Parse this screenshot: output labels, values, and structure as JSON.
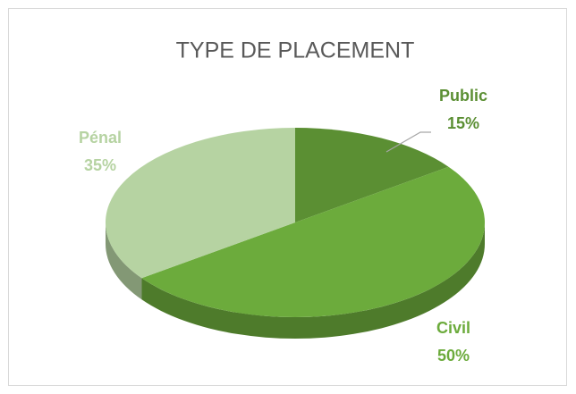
{
  "chart_data": {
    "type": "pie",
    "title": "TYPE DE PLACEMENT",
    "categories": [
      "Public",
      "Civil",
      "Pénal"
    ],
    "values": [
      15,
      50,
      35
    ],
    "value_labels": [
      "15%",
      "50%",
      "35%"
    ],
    "colors": [
      "#5b8f33",
      "#6cab3c",
      "#b6d3a2"
    ]
  }
}
